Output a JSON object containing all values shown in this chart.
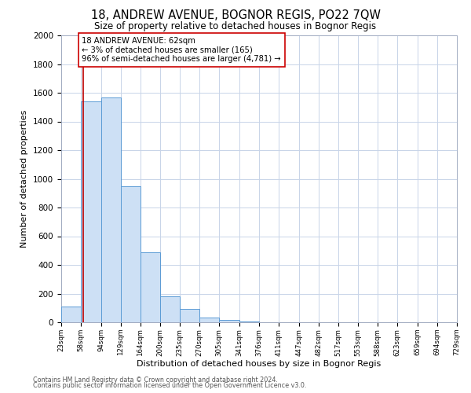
{
  "title": "18, ANDREW AVENUE, BOGNOR REGIS, PO22 7QW",
  "subtitle": "Size of property relative to detached houses in Bognor Regis",
  "xlabel": "Distribution of detached houses by size in Bognor Regis",
  "ylabel": "Number of detached properties",
  "bin_labels": [
    "23sqm",
    "58sqm",
    "94sqm",
    "129sqm",
    "164sqm",
    "200sqm",
    "235sqm",
    "270sqm",
    "305sqm",
    "341sqm",
    "376sqm",
    "411sqm",
    "447sqm",
    "482sqm",
    "517sqm",
    "553sqm",
    "588sqm",
    "623sqm",
    "659sqm",
    "694sqm",
    "729sqm"
  ],
  "bar_values": [
    110,
    1540,
    1565,
    950,
    485,
    180,
    95,
    33,
    14,
    4,
    2,
    0,
    0,
    0,
    0,
    0,
    0,
    0,
    0,
    0
  ],
  "bin_edges": [
    23,
    58,
    94,
    129,
    164,
    200,
    235,
    270,
    305,
    341,
    376,
    411,
    447,
    482,
    517,
    553,
    588,
    623,
    659,
    694,
    729
  ],
  "property_size": 62,
  "redline_x": 62,
  "annotation_title": "18 ANDREW AVENUE: 62sqm",
  "annotation_line1": "← 3% of detached houses are smaller (165)",
  "annotation_line2": "96% of semi-detached houses are larger (4,781) →",
  "bar_fill_color": "#cde0f5",
  "bar_edge_color": "#5b9bd5",
  "redline_color": "#bb0000",
  "annotation_box_edge": "#cc0000",
  "background_color": "#ffffff",
  "grid_color": "#c8d4e8",
  "ylim": [
    0,
    2000
  ],
  "yticks": [
    0,
    200,
    400,
    600,
    800,
    1000,
    1200,
    1400,
    1600,
    1800,
    2000
  ],
  "footer1": "Contains HM Land Registry data © Crown copyright and database right 2024.",
  "footer2": "Contains public sector information licensed under the Open Government Licence v3.0."
}
